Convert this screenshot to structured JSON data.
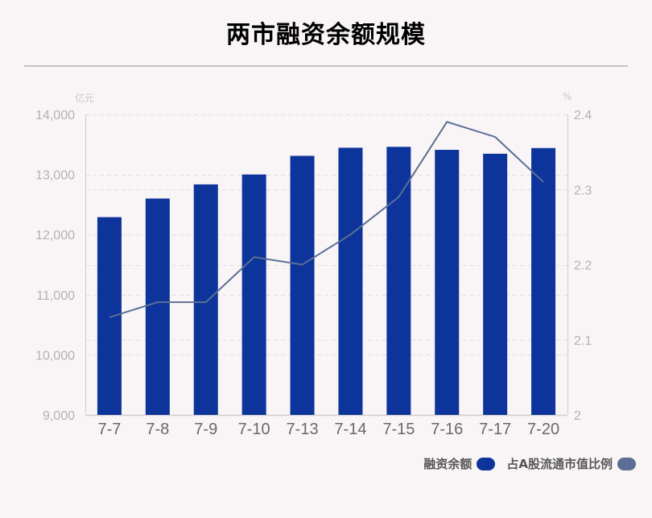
{
  "header": {
    "title": "两市融资余额规模"
  },
  "axes": {
    "left_unit": "亿元",
    "right_unit": "%",
    "left_ticks": [
      "14,000",
      "13,000",
      "12,000",
      "11,000",
      "10,000",
      "9,000"
    ],
    "right_ticks": [
      "2.4",
      "2.3",
      "2.2",
      "2.1",
      "2"
    ]
  },
  "legend": {
    "items": [
      {
        "label": "融资余额",
        "color": "#0d349b"
      },
      {
        "label": "占A股流通市值比例",
        "color": "#5b6f96"
      }
    ]
  },
  "colors": {
    "bar": "#0d349b",
    "line": "#5b6f96",
    "grid": "#e2dfe1",
    "axis": "#cfcdcf",
    "tick_text": "#b3b1b3",
    "category_text": "#6a686a"
  },
  "chart_data": {
    "type": "bar",
    "title": "两市融资余额规模",
    "xlabel": "",
    "ylabel": "亿元",
    "y2label": "%",
    "categories": [
      "7-7",
      "7-8",
      "7-9",
      "7-10",
      "7-13",
      "7-14",
      "7-15",
      "7-16",
      "7-17",
      "7-20"
    ],
    "series": [
      {
        "name": "融资余额",
        "type": "bar",
        "axis": "left",
        "values": [
          12290,
          12600,
          12835,
          13000,
          13310,
          13445,
          13460,
          13410,
          13345,
          13440
        ]
      },
      {
        "name": "占A股流通市值比例",
        "type": "line",
        "axis": "right",
        "values": [
          2.13,
          2.15,
          2.15,
          2.21,
          2.2,
          2.24,
          2.29,
          2.39,
          2.37,
          2.31
        ]
      }
    ],
    "ylim": [
      9000,
      14000
    ],
    "y2lim": [
      2.0,
      2.4
    ],
    "grid": true,
    "legend_position": "bottom-right"
  }
}
